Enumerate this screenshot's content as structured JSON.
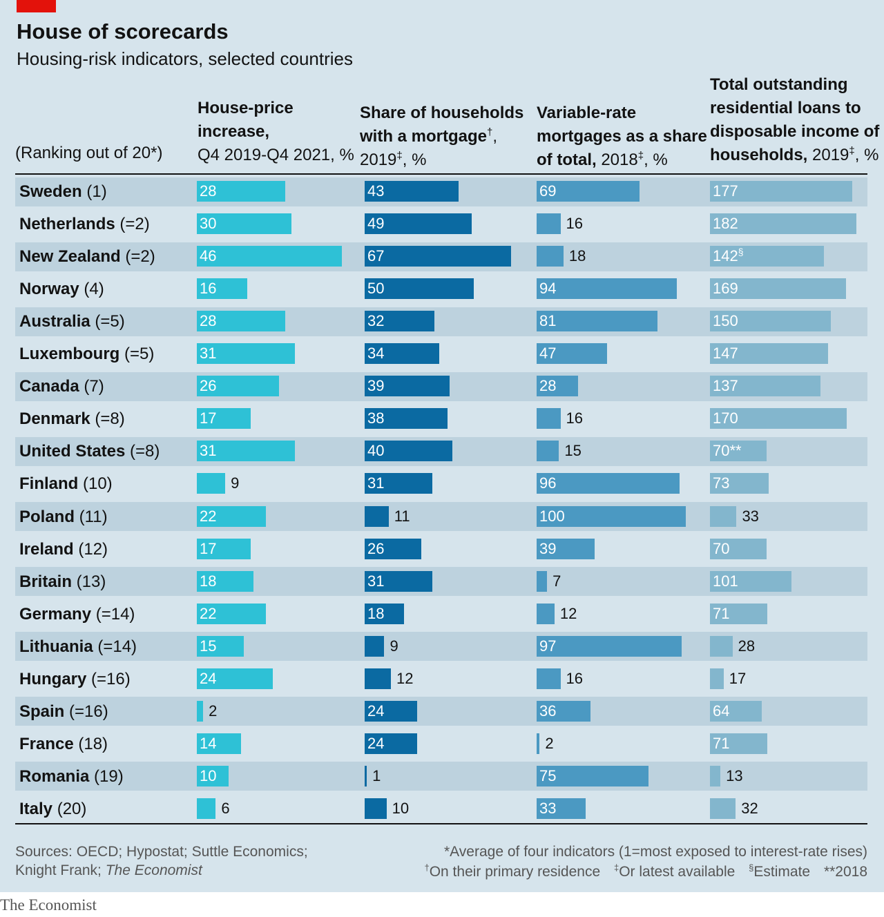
{
  "title": "House of scorecards",
  "subtitle": "Housing-risk indicators, selected countries",
  "ranking_note": "(Ranking out of 20*)",
  "columns": [
    {
      "line1": "House-price",
      "line2": "increase,",
      "line3": "Q4 2019-Q4 2021, %"
    },
    {
      "line1": "Share of households",
      "line2": "with a mortgage",
      "line2_mark": "†",
      "line2_end": ",",
      "line3": "2019",
      "line3_mark": "‡",
      "line3_end": ", %"
    },
    {
      "line1": "Variable-rate",
      "line2": "mortgages as a share",
      "line3": "of total,",
      "line3_rest": " 2018",
      "line3_mark": "‡",
      "line3_end": ", %"
    },
    {
      "line1": "Total outstanding",
      "line2": "residential loans to",
      "line3": "disposable income of",
      "line4": "households,",
      "line4_rest": " 2019",
      "line4_mark": "‡",
      "line4_end": ", %"
    }
  ],
  "colors": {
    "col1": "#2ec1d6",
    "col2": "#0b6aa2",
    "col3": "#4b99c2",
    "col4": "#83b6cd",
    "stripe": "#bdd2de",
    "background": "#d6e4ec",
    "tag": "#e3120b"
  },
  "chart_data": {
    "type": "bar",
    "categories": [
      "Sweden",
      "Netherlands",
      "New Zealand",
      "Norway",
      "Australia",
      "Luxembourg",
      "Canada",
      "Denmark",
      "United States",
      "Finland",
      "Poland",
      "Ireland",
      "Britain",
      "Germany",
      "Lithuania",
      "Hungary",
      "Spain",
      "France",
      "Romania",
      "Italy"
    ],
    "ranks": [
      "(1)",
      "(=2)",
      "(=2)",
      "(4)",
      "(=5)",
      "(=5)",
      "(7)",
      "(=8)",
      "(=8)",
      "(10)",
      "(11)",
      "(12)",
      "(13)",
      "(=14)",
      "(=14)",
      "(=16)",
      "(=16)",
      "(18)",
      "(19)",
      "(20)"
    ],
    "series": [
      {
        "name": "House-price increase, Q4 2019-Q4 2021, %",
        "values": [
          28,
          30,
          46,
          16,
          28,
          31,
          26,
          17,
          31,
          9,
          22,
          17,
          18,
          22,
          15,
          24,
          2,
          14,
          10,
          6
        ]
      },
      {
        "name": "Share of households with a mortgage, 2019, %",
        "values": [
          43,
          49,
          67,
          50,
          32,
          34,
          39,
          38,
          40,
          31,
          11,
          26,
          31,
          18,
          9,
          12,
          24,
          24,
          1,
          10
        ]
      },
      {
        "name": "Variable-rate mortgages as a share of total, 2018, %",
        "values": [
          69,
          16,
          18,
          94,
          81,
          47,
          28,
          16,
          15,
          96,
          100,
          39,
          7,
          12,
          97,
          16,
          36,
          2,
          75,
          33
        ]
      },
      {
        "name": "Total outstanding residential loans to disposable income of households, 2019, %",
        "values": [
          177,
          182,
          142,
          169,
          150,
          147,
          137,
          170,
          70,
          73,
          33,
          70,
          101,
          71,
          28,
          17,
          64,
          71,
          13,
          32
        ]
      }
    ],
    "value_marks": [
      [],
      [],
      [],
      [
        {
          "row": 2,
          "mark": "§"
        },
        {
          "row": 8,
          "mark": "**"
        }
      ]
    ]
  },
  "footer": {
    "sources_line1": "Sources: OECD; Hypostat; Suttle Economics;",
    "sources_line2_start": "Knight Frank; ",
    "sources_line2_italic": "The Economist",
    "note1": "*Average of four indicators (1=most exposed to interest-rate rises)",
    "note2a_mark": "†",
    "note2a": "On their primary residence",
    "note2b_mark": "‡",
    "note2b": "Or latest available",
    "note2c_mark": "§",
    "note2c": "Estimate",
    "note2d": "**2018"
  },
  "brand": "The Economist"
}
